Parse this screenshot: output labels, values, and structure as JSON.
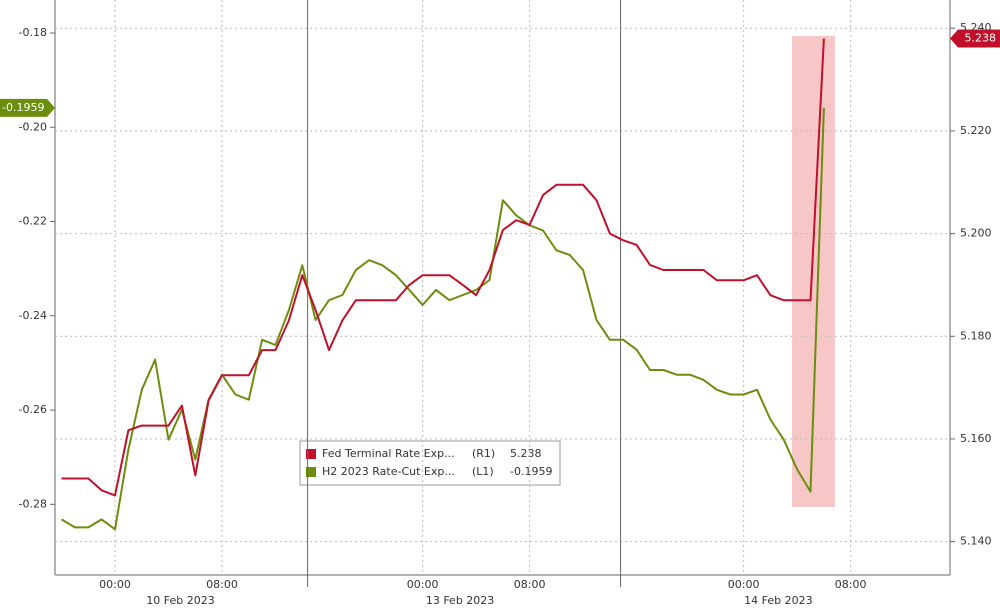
{
  "chart_data": {
    "type": "line",
    "categories": [
      null,
      null,
      null,
      null,
      "00:00",
      null,
      null,
      null,
      null,
      null,
      null,
      null,
      "08:00",
      null,
      null,
      null,
      null,
      null,
      null,
      null,
      null,
      null,
      null,
      null,
      null,
      null,
      null,
      "00:00",
      null,
      null,
      null,
      null,
      null,
      null,
      null,
      "08:00",
      null,
      null,
      null,
      null,
      null,
      null,
      null,
      null,
      null,
      null,
      null,
      null,
      null,
      null,
      null,
      "00:00",
      null,
      null,
      null,
      null,
      null,
      null,
      null,
      "08:00"
    ],
    "x_group_labels": [
      "10 Feb 2023",
      "13 Feb 2023",
      "14 Feb 2023"
    ],
    "series": [
      {
        "name": "Fed Terminal Rate Exp...",
        "axis_tag": "(R1)",
        "last_label": "5.238",
        "axis": "y2",
        "color": "#c0102a",
        "values": [
          5.1523,
          5.1523,
          5.1523,
          5.15,
          5.149,
          5.1617,
          5.1626,
          5.1626,
          5.1626,
          5.1665,
          5.1529,
          5.1675,
          5.1724,
          5.1724,
          5.1724,
          5.1773,
          5.1773,
          5.1831,
          5.1919,
          5.1851,
          5.1773,
          5.1831,
          5.187,
          5.187,
          5.187,
          5.187,
          5.19,
          5.1919,
          5.1919,
          5.1919,
          5.19,
          5.188,
          5.1929,
          5.2007,
          5.2026,
          5.2017,
          5.2075,
          5.2095,
          5.2095,
          5.2095,
          5.2065,
          5.2,
          5.1987,
          5.1978,
          5.1939,
          5.1929,
          5.1929,
          5.1929,
          5.1929,
          5.1909,
          5.1909,
          5.1909,
          5.1919,
          5.188,
          5.187,
          5.187,
          5.187,
          5.238,
          null,
          null
        ]
      },
      {
        "name": "H2 2023 Rate-Cut Exp...",
        "axis_tag": "(L1)",
        "last_label": "-0.1959",
        "axis": "y",
        "color": "#6b8e0c",
        "values": [
          -0.2832,
          -0.2849,
          -0.2849,
          -0.2832,
          -0.2853,
          -0.2684,
          -0.2557,
          -0.2493,
          -0.2663,
          -0.2599,
          -0.2705,
          -0.2578,
          -0.2525,
          -0.2567,
          -0.2578,
          -0.2451,
          -0.2462,
          -0.2388,
          -0.2293,
          -0.2409,
          -0.2367,
          -0.2356,
          -0.2303,
          -0.2282,
          -0.2293,
          -0.2314,
          -0.2345,
          -0.2377,
          -0.2345,
          -0.2367,
          -0.2356,
          -0.2345,
          -0.2324,
          -0.2155,
          -0.2187,
          -0.2208,
          -0.2219,
          -0.2261,
          -0.2271,
          -0.2303,
          -0.2409,
          -0.2451,
          -0.2451,
          -0.2472,
          -0.2515,
          -0.2515,
          -0.2525,
          -0.2525,
          -0.2536,
          -0.2557,
          -0.2567,
          -0.2567,
          -0.2557,
          -0.262,
          -0.2663,
          -0.2726,
          -0.2773,
          -0.1959,
          null,
          null
        ]
      }
    ],
    "ylim": [
      -0.295,
      -0.173
    ],
    "yticks": [
      -0.18,
      {
        "value": -0.2,
        "label": "-0.20"
      },
      -0.22,
      -0.24,
      -0.26,
      -0.28
    ],
    "y2lim": [
      5.1335,
      5.2455
    ],
    "y2ticks": [
      {
        "value": 5.14,
        "label": "5.140"
      },
      {
        "value": 5.16,
        "label": "5.160"
      },
      {
        "value": 5.18,
        "label": "5.180"
      },
      {
        "value": 5.2,
        "label": "5.200"
      },
      {
        "value": 5.22,
        "label": "5.220"
      },
      {
        "value": 5.24,
        "label": "5.240"
      }
    ],
    "grid": true
  }
}
